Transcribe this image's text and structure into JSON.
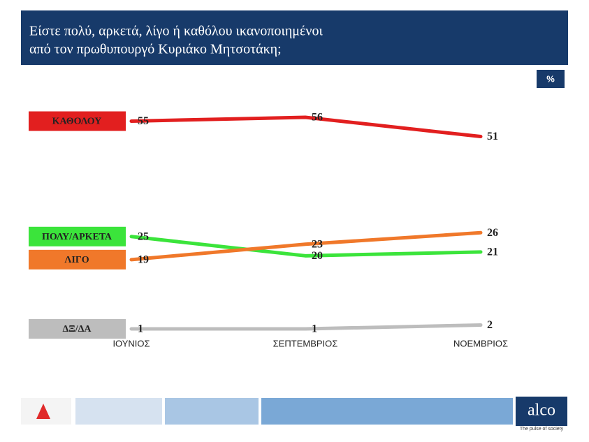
{
  "chart_data": {
    "type": "line",
    "title": [
      "Είστε πολύ, αρκετά, λίγο ή καθόλου ικανοποιημένοι",
      "από τον πρωθυπουργό Κυριάκο Μητσοτάκη;"
    ],
    "unit": "%",
    "categories": [
      "ΙΟΥΝΙΟΣ",
      "ΣΕΠΤΕΜΒΡΙΟΣ",
      "ΝΟΕΜΒΡΙΟΣ"
    ],
    "series": [
      {
        "name": "ΚΑΘΟΛΟΥ",
        "color": "#e21f1f",
        "values": [
          55,
          56,
          51
        ]
      },
      {
        "name": "ΠΟΛΥ/ΑΡΚΕΤΑ",
        "color": "#3be43b",
        "values": [
          25,
          20,
          21
        ]
      },
      {
        "name": "ΛΙΓΟ",
        "color": "#f0782a",
        "values": [
          19,
          23,
          26
        ]
      },
      {
        "name": "ΔΞ/ΔΑ",
        "color": "#bdbdbd",
        "values": [
          1,
          1,
          2
        ]
      }
    ]
  },
  "branding": {
    "logo": "alco",
    "tagline": "The pulse of society"
  }
}
